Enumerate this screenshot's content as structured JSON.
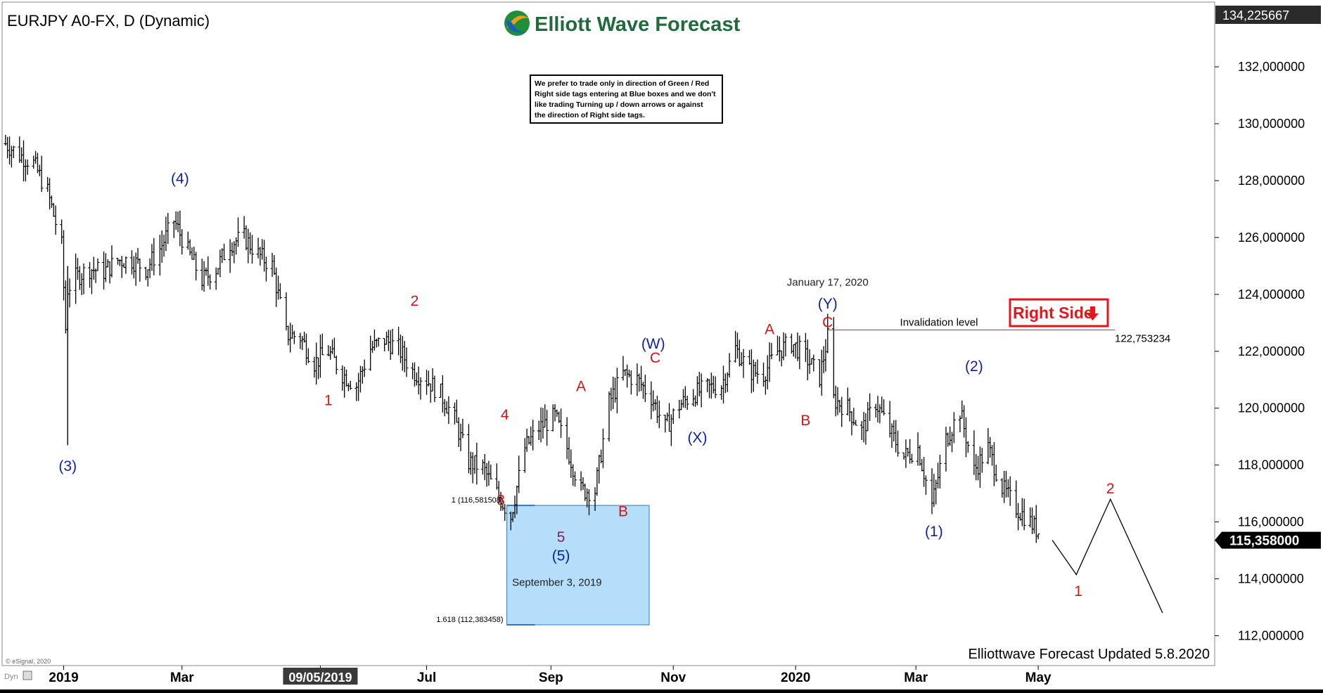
{
  "chart_title": "EURJPY A0-FX, D (Dynamic)",
  "brand": {
    "logo_text": "Elliott Wave Forecast",
    "footer_text": "Elliottwave Forecast Updated 5.8.2020",
    "esignal": "© eSignal, 2020",
    "dyn_label": "Dyn"
  },
  "disclaimer": [
    "We prefer to trade only in direction of Green / Red",
    "Right side tags entering at Blue boxes and we don't",
    "like trading Turning up / down arrows or against",
    "the direction of Right side tags."
  ],
  "right_side_tag": "Right Side",
  "invalidation": {
    "label": "Invalidation level",
    "value_label": "122,753234",
    "price": 122.753
  },
  "price_axis": {
    "top_label": "134,225667",
    "last_label": "115,358000",
    "last_price": 115.358,
    "ticks": [
      {
        "value": 112,
        "label": "112,000000"
      },
      {
        "value": 114,
        "label": "114,000000"
      },
      {
        "value": 116,
        "label": "116,000000"
      },
      {
        "value": 118,
        "label": "118,000000"
      },
      {
        "value": 120,
        "label": "120,000000"
      },
      {
        "value": 122,
        "label": "122,000000"
      },
      {
        "value": 124,
        "label": "124,000000"
      },
      {
        "value": 126,
        "label": "126,000000"
      },
      {
        "value": 128,
        "label": "128,000000"
      },
      {
        "value": 130,
        "label": "130,000000"
      },
      {
        "value": 132,
        "label": "132,000000"
      }
    ]
  },
  "time_axis": {
    "ticks": [
      {
        "date": "2019-01-01",
        "label": "2019"
      },
      {
        "date": "2019-03-01",
        "label": "Mar"
      },
      {
        "date": "2019-05-09",
        "label": "09/05/2019",
        "highlight": true
      },
      {
        "date": "2019-07-01",
        "label": "Jul"
      },
      {
        "date": "2019-09-01",
        "label": "Sep"
      },
      {
        "date": "2019-11-01",
        "label": "Nov"
      },
      {
        "date": "2020-01-01",
        "label": "2020"
      },
      {
        "date": "2020-03-01",
        "label": "Mar"
      },
      {
        "date": "2020-05-01",
        "label": "May"
      }
    ]
  },
  "fib_box": {
    "date_from": "2019-08-10",
    "date_to": "2019-10-20",
    "price_top": 116.5815,
    "price_bottom": 112.3835,
    "top_label": "1 (116,581508)",
    "bottom_label": "1.618 (112,383458)",
    "color": "#b5defa",
    "border": "#2a78c2"
  },
  "annotations": [
    {
      "label": "September 3, 2019",
      "date": "2019-09-04",
      "price": 113.75
    },
    {
      "label": "January 17, 2020",
      "date": "2020-01-17",
      "price": 124.3
    }
  ],
  "colors": {
    "blue_wave": "#0b1fa8",
    "red_wave": "#d41414",
    "purple_wave": "#8e1a5a",
    "right_side": "#e3161b",
    "invalidation_line": "#d42020"
  },
  "chart_data": {
    "type": "line",
    "title": "EURJPY A0-FX, D (Dynamic)",
    "xlabel": "",
    "ylabel": "",
    "ylim": [
      111.0,
      134.2257
    ],
    "xlim": [
      "2018-12-02",
      "2020-07-28"
    ],
    "grid": false,
    "series": [
      {
        "style": "ohlc-bars",
        "x": [
          "2018-12-03",
          "2018-12-10",
          "2018-12-17",
          "2018-12-24",
          "2018-12-31",
          "2019-01-02",
          "2019-01-03",
          "2019-01-07",
          "2019-01-14",
          "2019-01-21",
          "2019-01-28",
          "2019-02-04",
          "2019-02-11",
          "2019-02-18",
          "2019-02-25",
          "2019-03-04",
          "2019-03-11",
          "2019-03-18",
          "2019-03-25",
          "2019-04-01",
          "2019-04-08",
          "2019-04-15",
          "2019-04-22",
          "2019-04-29",
          "2019-05-06",
          "2019-05-13",
          "2019-05-20",
          "2019-05-27",
          "2019-06-03",
          "2019-06-10",
          "2019-06-17",
          "2019-06-24",
          "2019-07-01",
          "2019-07-08",
          "2019-07-15",
          "2019-07-22",
          "2019-07-29",
          "2019-08-05",
          "2019-08-12",
          "2019-08-19",
          "2019-08-26",
          "2019-09-03",
          "2019-09-09",
          "2019-09-16",
          "2019-09-23",
          "2019-09-30",
          "2019-10-07",
          "2019-10-14",
          "2019-10-21",
          "2019-10-28",
          "2019-11-04",
          "2019-11-11",
          "2019-11-18",
          "2019-11-25",
          "2019-12-02",
          "2019-12-09",
          "2019-12-16",
          "2019-12-23",
          "2019-12-30",
          "2020-01-06",
          "2020-01-13",
          "2020-01-17",
          "2020-01-20",
          "2020-01-27",
          "2020-02-03",
          "2020-02-10",
          "2020-02-17",
          "2020-02-24",
          "2020-03-02",
          "2020-03-09",
          "2020-03-16",
          "2020-03-23",
          "2020-03-30",
          "2020-04-06",
          "2020-04-13",
          "2020-04-20",
          "2020-04-27",
          "2020-05-04"
        ],
        "y": [
          129.3,
          128.9,
          128.6,
          127.6,
          125.7,
          122.8,
          124.2,
          124.6,
          124.9,
          124.8,
          125.2,
          125.2,
          124.9,
          125.6,
          126.6,
          125.5,
          124.5,
          124.9,
          125.8,
          126.0,
          125.4,
          125.0,
          122.6,
          122.5,
          121.6,
          122.0,
          121.2,
          120.8,
          122.1,
          122.4,
          122.1,
          121.3,
          121.0,
          120.5,
          119.6,
          118.1,
          117.9,
          117.0,
          116.2,
          118.6,
          119.3,
          119.7,
          118.6,
          117.1,
          117.1,
          120.2,
          121.2,
          121.0,
          120.4,
          119.3,
          120.1,
          120.5,
          120.7,
          120.8,
          122.1,
          121.3,
          121.2,
          122.0,
          122.3,
          121.8,
          121.1,
          122.5,
          120.3,
          120.0,
          119.2,
          120.2,
          119.2,
          118.3,
          118.6,
          116.6,
          118.9,
          119.9,
          117.8,
          118.6,
          117.2,
          116.5,
          116.0,
          115.4
        ]
      },
      {
        "style": "projection",
        "x": [
          "2020-05-08",
          "2020-05-20",
          "2020-06-06",
          "2020-07-02"
        ],
        "y": [
          115.36,
          114.15,
          116.8,
          112.8
        ]
      }
    ],
    "wave_labels": [
      {
        "label": "(3)",
        "color": "blue",
        "date": "2019-01-03",
        "price": 117.8
      },
      {
        "label": "(4)",
        "color": "blue",
        "date": "2019-02-28",
        "price": 127.9
      },
      {
        "label": "1",
        "color": "red",
        "date": "2019-05-13",
        "price": 120.1
      },
      {
        "label": "2",
        "color": "red",
        "date": "2019-06-25",
        "price": 123.6
      },
      {
        "label": "3",
        "color": "red",
        "date": "2019-08-07",
        "price": 116.6
      },
      {
        "label": "4",
        "color": "red",
        "date": "2019-08-09",
        "price": 119.6
      },
      {
        "label": "5",
        "color": "purple",
        "date": "2019-09-06",
        "price": 115.3
      },
      {
        "label": "(5)",
        "color": "blue",
        "date": "2019-09-06",
        "price": 114.65
      },
      {
        "label": "A",
        "color": "red",
        "date": "2019-09-16",
        "price": 120.6
      },
      {
        "label": "B",
        "color": "red",
        "date": "2019-10-07",
        "price": 116.2
      },
      {
        "label": "(W)",
        "color": "blue",
        "date": "2019-10-22",
        "price": 122.1
      },
      {
        "label": "C",
        "color": "red",
        "date": "2019-10-23",
        "price": 121.6
      },
      {
        "label": "(X)",
        "color": "blue",
        "date": "2019-11-13",
        "price": 118.8
      },
      {
        "label": "A",
        "color": "red",
        "date": "2019-12-19",
        "price": 122.6
      },
      {
        "label": "B",
        "color": "red",
        "date": "2020-01-06",
        "price": 119.4
      },
      {
        "label": "(Y)",
        "color": "blue",
        "date": "2020-01-17",
        "price": 123.5
      },
      {
        "label": "C",
        "color": "red",
        "date": "2020-01-17",
        "price": 122.85
      },
      {
        "label": "(1)",
        "color": "blue",
        "date": "2020-03-10",
        "price": 115.5
      },
      {
        "label": "(2)",
        "color": "blue",
        "date": "2020-03-30",
        "price": 121.3
      },
      {
        "label": "1",
        "color": "red",
        "date": "2020-05-21",
        "price": 113.4
      },
      {
        "label": "2",
        "color": "red",
        "date": "2020-06-06",
        "price": 117.0
      }
    ]
  }
}
